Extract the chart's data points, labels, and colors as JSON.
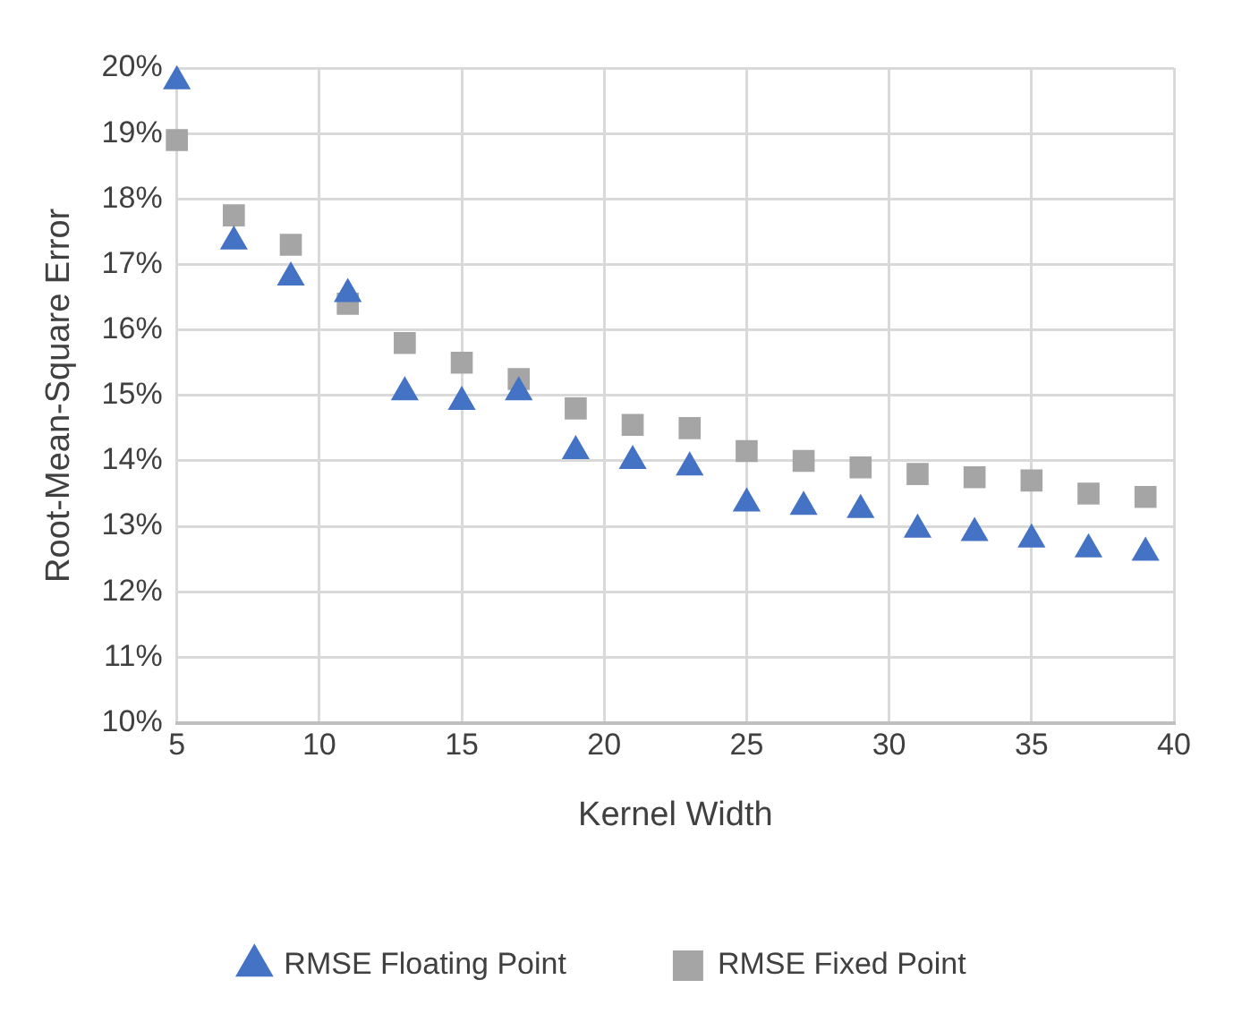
{
  "chart_data": {
    "type": "scatter",
    "xlabel": "Kernel Width",
    "ylabel": "Root-Mean-Square Error",
    "x": [
      5,
      7,
      9,
      11,
      13,
      15,
      17,
      19,
      21,
      23,
      25,
      27,
      29,
      31,
      33,
      35,
      37,
      39
    ],
    "series": [
      {
        "name": "RMSE Floating Point",
        "color": "#4472c4",
        "marker": "triangle",
        "values": [
          19.8,
          17.35,
          16.8,
          16.55,
          15.05,
          14.9,
          15.05,
          14.15,
          14.0,
          13.9,
          13.35,
          13.3,
          13.25,
          12.95,
          12.9,
          12.8,
          12.65,
          12.6
        ]
      },
      {
        "name": "RMSE Fixed Point",
        "color": "#a5a5a5",
        "marker": "square",
        "values": [
          18.9,
          17.75,
          17.3,
          16.4,
          15.8,
          15.5,
          15.25,
          14.8,
          14.55,
          14.5,
          14.15,
          14.0,
          13.9,
          13.8,
          13.75,
          13.7,
          13.5,
          13.45
        ]
      }
    ],
    "xlim": [
      5,
      40
    ],
    "xticks": [
      5,
      10,
      15,
      20,
      25,
      30,
      35,
      40
    ],
    "ylim": [
      10,
      20
    ],
    "yticks": [
      {
        "value": 10,
        "label": "10%"
      },
      {
        "value": 11,
        "label": "11%"
      },
      {
        "value": 12,
        "label": "12%"
      },
      {
        "value": 13,
        "label": "13%"
      },
      {
        "value": 14,
        "label": "14%"
      },
      {
        "value": 15,
        "label": "15%"
      },
      {
        "value": 16,
        "label": "16%"
      },
      {
        "value": 17,
        "label": "17%"
      },
      {
        "value": 18,
        "label": "18%"
      },
      {
        "value": 19,
        "label": "19%"
      },
      {
        "value": 20,
        "label": "20%"
      }
    ],
    "grid": true,
    "legend": "bottom"
  }
}
